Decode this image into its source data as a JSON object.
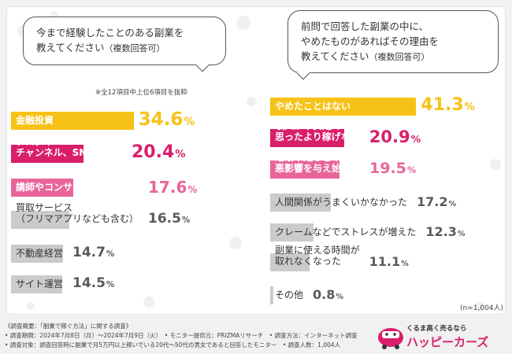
{
  "colors": {
    "yellow": "#f7c217",
    "magenta": "#d91e6a",
    "pink": "#e8659b",
    "gray": "#cbcbcb",
    "dark_text": "#333333",
    "light_value": "#5a5a5a"
  },
  "left_question": {
    "lines": [
      "今まで経験したことのある副業を",
      "教えてください"
    ],
    "note": "（複数回答可）",
    "footnote": "※全12項目中上位6項目を抜粋"
  },
  "right_question": {
    "lines": [
      "前問で回答した副業の中に、",
      "やめたものがあればその理由を",
      "教えてください"
    ],
    "note": "（複数回答可）"
  },
  "sample_size": "(n=1,004人)",
  "chart_data": [
    {
      "type": "bar",
      "title": "今まで経験したことのある副業を教えてください（複数回答可）",
      "unit": "%",
      "xlim": [
        0,
        40
      ],
      "categories": [
        "金融投資",
        "ブログやYouTubeチャンネル、SNSの運営",
        "講師やコンサルタントの活動",
        "買取サービス（フリマアプリなども含む）",
        "不動産経営",
        "サイト運営"
      ],
      "values": [
        34.6,
        20.4,
        17.6,
        16.5,
        14.7,
        14.5
      ]
    },
    {
      "type": "bar",
      "title": "前問で回答した副業の中に、やめたものがあればその理由を教えてください（複数回答可）",
      "unit": "%",
      "xlim": [
        0,
        45
      ],
      "categories": [
        "やめたことはない",
        "収入が不安定で思ったより稼げない",
        "睡眠不足など本業に悪影響を与え始めた",
        "人間関係がうまくいかなかった",
        "クレームなどでストレスが増えた",
        "副業に使える時間が取れなくなった",
        "その他"
      ],
      "values": [
        41.3,
        20.9,
        19.5,
        17.2,
        12.3,
        11.1,
        0.8
      ]
    }
  ],
  "footer": {
    "line1": "《調査概要：「副業で稼ぐ方法」に関する調査》",
    "line2": "• 調査期間：2024年7月8日（月）～2024年7月9日（火）　• モニター提供元：PRIZMAリサーチ　• 調査方法：インターネット調査",
    "line3": "• 調査対象：調査回答時に副業で月5万円以上稼いでいる20代～50代の男女であると回答したモニター　• 調査人数：1,004人"
  },
  "logo": {
    "tagline": "くるま高く売るなら",
    "name": "ハッピーカーズ"
  }
}
